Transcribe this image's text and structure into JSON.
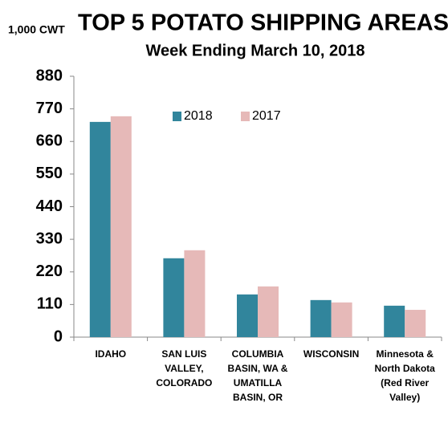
{
  "chart_data": {
    "type": "bar",
    "title": "TOP 5 POTATO SHIPPING AREAS",
    "subtitle": "Week Ending March 10, 2018",
    "y_label": "1,000 CWT",
    "categories": [
      "IDAHO",
      "SAN LUIS VALLEY, COLORADO",
      "COLUMBIA BASIN, WA & UMATILLA BASIN, OR",
      "WISCONSIN",
      "Minnesota & North Dakota (Red River Valley)"
    ],
    "series": [
      {
        "name": "2018",
        "color": "#31859c",
        "values": [
          726,
          266,
          144,
          125,
          106
        ]
      },
      {
        "name": "2017",
        "color": "#e6b9b8",
        "values": [
          745,
          293,
          171,
          117,
          92
        ]
      }
    ],
    "ylim": [
      0,
      880
    ],
    "yticks": [
      0,
      110,
      220,
      330,
      440,
      550,
      660,
      770,
      880
    ],
    "grid": false,
    "legend": "top"
  }
}
